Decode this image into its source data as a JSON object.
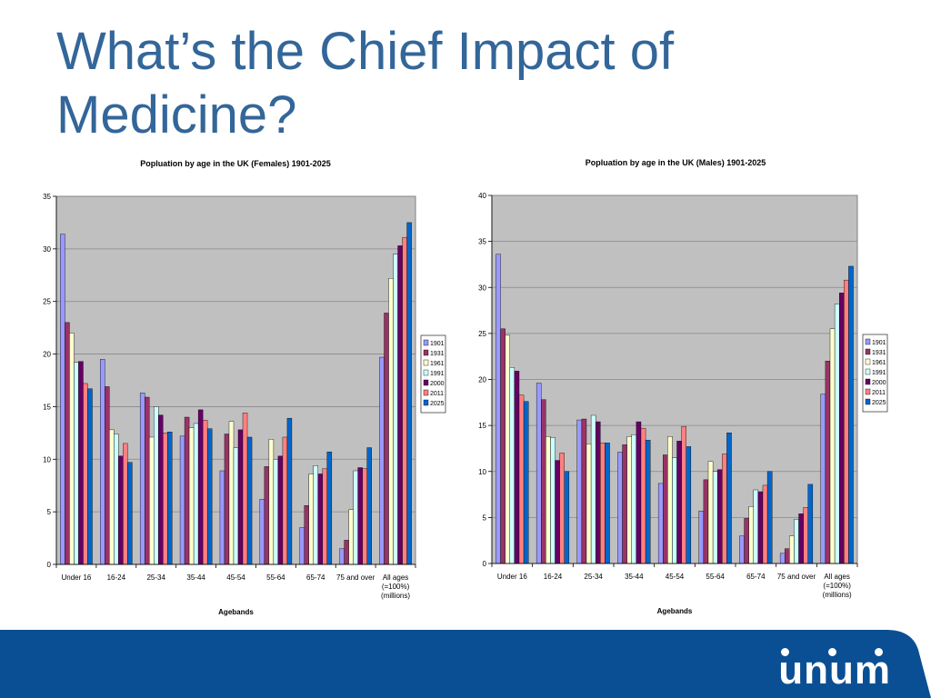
{
  "slide": {
    "title": "What’s the Chief Impact of Medicine?"
  },
  "footer": {
    "logo_text": "unum"
  },
  "colors": {
    "title": "#336699",
    "footer": "#0a4f93",
    "plot_bg": "#c0c0c0"
  },
  "chart_data": [
    {
      "type": "bar",
      "title": "Popluation by age in the UK (Females) 1901-2025",
      "xlabel": "Agebands",
      "ylabel": "",
      "ylim": [
        0,
        35
      ],
      "yticks": [
        0,
        5,
        10,
        15,
        20,
        25,
        30,
        35
      ],
      "grid": true,
      "legend_position": "right",
      "categories": [
        "Under 16",
        "16-24",
        "25-34",
        "35-44",
        "45-54",
        "55-64",
        "65-74",
        "75 and over",
        "All ages (=100%) (millions)"
      ],
      "series": [
        {
          "name": "1901",
          "color": "#9999ff",
          "values": [
            31.4,
            19.5,
            16.3,
            12.2,
            8.9,
            6.2,
            3.5,
            1.5,
            19.7
          ]
        },
        {
          "name": "1931",
          "color": "#993366",
          "values": [
            23.0,
            16.9,
            15.9,
            14.0,
            12.4,
            9.3,
            5.6,
            2.3,
            23.9
          ]
        },
        {
          "name": "1961",
          "color": "#ffffcc",
          "values": [
            22.0,
            12.8,
            12.1,
            13.0,
            13.6,
            11.9,
            8.6,
            5.2,
            27.2
          ]
        },
        {
          "name": "1991",
          "color": "#ccffff",
          "values": [
            19.2,
            12.4,
            15.0,
            13.4,
            11.1,
            10.0,
            9.4,
            8.9,
            29.5
          ]
        },
        {
          "name": "2000",
          "color": "#660066",
          "values": [
            19.3,
            10.3,
            14.2,
            14.7,
            12.8,
            10.3,
            8.6,
            9.2,
            30.3
          ]
        },
        {
          "name": "2011",
          "color": "#ff8080",
          "values": [
            17.2,
            11.5,
            12.5,
            13.7,
            14.4,
            12.1,
            9.1,
            9.1,
            31.1
          ]
        },
        {
          "name": "2025",
          "color": "#0066cc",
          "values": [
            16.7,
            9.7,
            12.6,
            12.9,
            12.1,
            13.9,
            10.7,
            11.1,
            32.5
          ]
        }
      ],
      "x_category_labels": [
        [
          "Under 16"
        ],
        [
          "16-24"
        ],
        [
          "25-34"
        ],
        [
          "35-44"
        ],
        [
          "45-54"
        ],
        [
          "55-64"
        ],
        [
          "65-74"
        ],
        [
          "75 and over"
        ],
        [
          "All ages",
          "(=100%)",
          "(millions)"
        ]
      ]
    },
    {
      "type": "bar",
      "title": "Popluation by age in the UK (Males) 1901-2025",
      "xlabel": "Agebands",
      "ylabel": "",
      "ylim": [
        0,
        40
      ],
      "yticks": [
        0,
        5,
        10,
        15,
        20,
        25,
        30,
        35,
        40
      ],
      "grid": true,
      "legend_position": "right",
      "categories": [
        "Under 16",
        "16-24",
        "25-34",
        "35-44",
        "45-54",
        "55-64",
        "65-74",
        "75 and over",
        "All ages (=100%) (millions)"
      ],
      "series": [
        {
          "name": "1901",
          "color": "#9999ff",
          "values": [
            33.6,
            19.6,
            15.6,
            12.1,
            8.7,
            5.7,
            3.0,
            1.1,
            18.4
          ]
        },
        {
          "name": "1931",
          "color": "#993366",
          "values": [
            25.5,
            17.8,
            15.7,
            12.9,
            11.8,
            9.1,
            4.9,
            1.6,
            22.0
          ]
        },
        {
          "name": "1961",
          "color": "#ffffcc",
          "values": [
            24.8,
            13.8,
            13.0,
            13.8,
            13.8,
            11.1,
            6.2,
            3.0,
            25.5
          ]
        },
        {
          "name": "1991",
          "color": "#ccffff",
          "values": [
            21.3,
            13.7,
            16.1,
            14.0,
            11.5,
            10.0,
            8.0,
            4.8,
            28.2
          ]
        },
        {
          "name": "2000",
          "color": "#660066",
          "values": [
            20.9,
            11.2,
            15.4,
            15.4,
            13.3,
            10.2,
            7.8,
            5.4,
            29.4
          ]
        },
        {
          "name": "2011",
          "color": "#ff8080",
          "values": [
            18.3,
            12.0,
            13.1,
            14.7,
            14.9,
            11.9,
            8.5,
            6.1,
            30.8
          ]
        },
        {
          "name": "2025",
          "color": "#0066cc",
          "values": [
            17.6,
            10.0,
            13.1,
            13.4,
            12.7,
            14.2,
            10.0,
            8.6,
            32.3
          ]
        }
      ],
      "x_category_labels": [
        [
          "Under 16"
        ],
        [
          "16-24"
        ],
        [
          "25-34"
        ],
        [
          "35-44"
        ],
        [
          "45-54"
        ],
        [
          "55-64"
        ],
        [
          "65-74"
        ],
        [
          "75 and over"
        ],
        [
          "All ages",
          "(=100%)",
          "(millions)"
        ]
      ]
    }
  ]
}
